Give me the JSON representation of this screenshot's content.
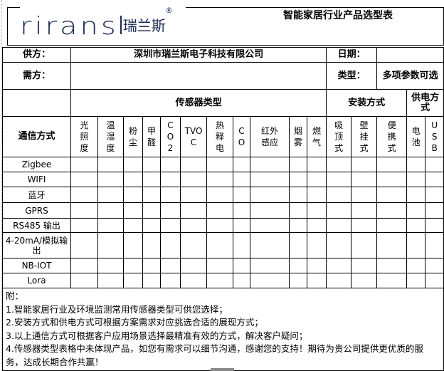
{
  "logo": {
    "en": "rirans",
    "cn": "瑞兰斯",
    "mark": "®",
    "color": "#1c2a55"
  },
  "title": "智能家居行业产品选型表",
  "supplier": {
    "label": "供方：",
    "value": "深圳市瑞兰斯电子科技有限公司"
  },
  "date": {
    "label": "日期：",
    "value": ""
  },
  "buyer": {
    "label": "需方：",
    "value": ""
  },
  "type": {
    "label": "类型：",
    "value": "多项参数可选"
  },
  "groups": {
    "sensor": "传感器类型",
    "install": "安装方式",
    "power": "供电方式"
  },
  "comm_header": "通信方式",
  "columns": [
    "光照度",
    "温湿度",
    "粉尘",
    "甲醛",
    "CO2",
    "TVOC",
    "热释电",
    "CO",
    "红外感应",
    "烟雾",
    "燃气",
    "吸顶式",
    "壁挂式",
    "便携式",
    "电池",
    "USB"
  ],
  "rows": [
    "Zigbee",
    "WIFI",
    "蓝牙",
    "GPRS",
    "RS485 输出",
    "4-20mA/模拟输出",
    "NB-IOT",
    "Lora"
  ],
  "notes": {
    "heading": "附：",
    "lines": [
      "1.智能家居行业及环境监测常用传感器类型可供您选择；",
      "2.安装方式和供电方式可根据方案需求对应挑选合适的展现方式；",
      "3.以上通信方式可根据客户应用场景选择最精准有效的方式，解决客户疑问；",
      "4.传感器类型表格中未体现产品，如您有需求可以细节沟通，感谢您的支持！期待为贵公司提供更优质的服务，达成长期合作共赢！"
    ]
  }
}
